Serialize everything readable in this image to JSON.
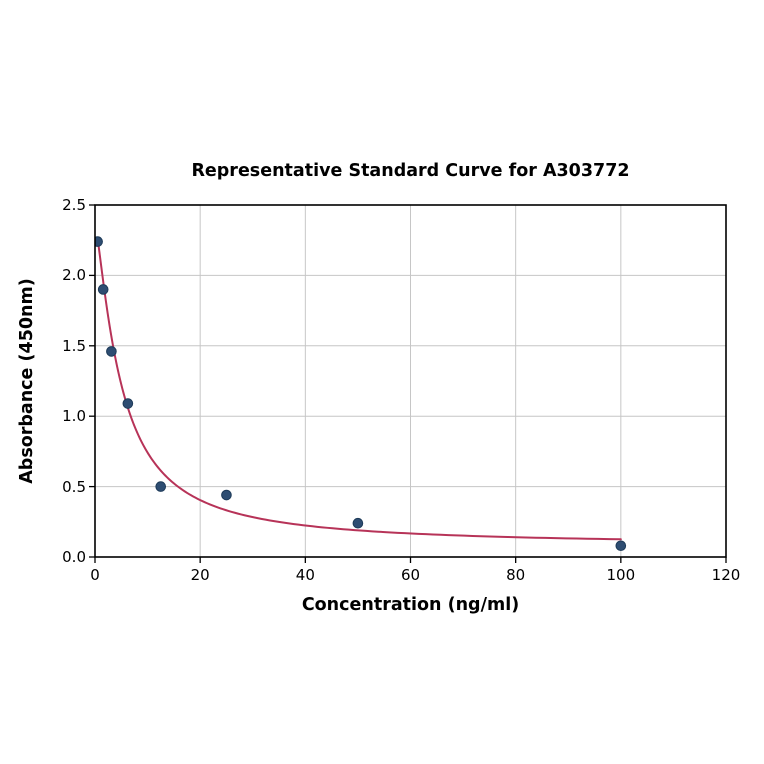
{
  "chart_data": {
    "type": "scatter",
    "title": "Representative Standard Curve for A303772",
    "xlabel": "Concentration (ng/ml)",
    "ylabel": "Absorbance (450nm)",
    "xlim": [
      0,
      120
    ],
    "ylim": [
      0,
      2.5
    ],
    "x_ticks": [
      0,
      20,
      40,
      60,
      80,
      100,
      120
    ],
    "x_tick_labels": [
      "0",
      "20",
      "40",
      "60",
      "80",
      "100",
      "120"
    ],
    "y_ticks": [
      0,
      0.5,
      1.0,
      1.5,
      2.0,
      2.5
    ],
    "y_tick_labels": [
      "0.0",
      "0.5",
      "1.0",
      "1.5",
      "2.0",
      "2.5"
    ],
    "grid": true,
    "legend": false,
    "points": [
      [
        0.5,
        2.24
      ],
      [
        1.56,
        1.9
      ],
      [
        3.12,
        1.46
      ],
      [
        6.25,
        1.09
      ],
      [
        12.5,
        0.5
      ],
      [
        25,
        0.44
      ],
      [
        50,
        0.24
      ],
      [
        100,
        0.08
      ]
    ],
    "fit_curve": {
      "model": "4PL",
      "a": 2.37,
      "b": 1.3,
      "c": 5.0,
      "d": 0.08,
      "x_start": 0.5,
      "x_end": 100
    },
    "colors": {
      "curve": "#b73358",
      "point_fill": "#2e4d72",
      "point_edge": "#1d3a58",
      "grid": "#c6c6c6",
      "axis": "#000000",
      "background": "#ffffff"
    }
  }
}
